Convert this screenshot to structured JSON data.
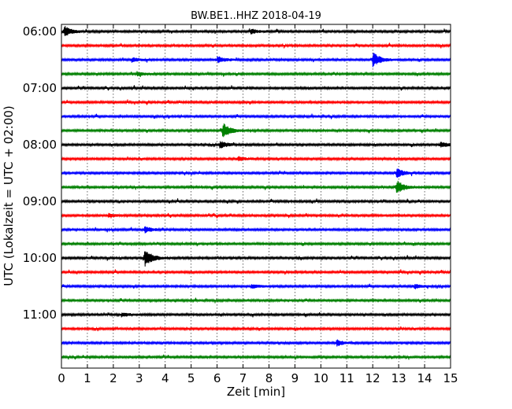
{
  "chart_data": {
    "type": "line",
    "title": "BW.BE1..HHZ 2018-04-19",
    "xlabel": "Zeit  [min]",
    "ylabel": "UTC (Lokalzeit = UTC + 02:00)",
    "xlim": [
      0,
      15
    ],
    "x_ticks": [
      "0",
      "1",
      "2",
      "3",
      "4",
      "5",
      "6",
      "7",
      "8",
      "9",
      "10",
      "11",
      "12",
      "13",
      "14",
      "15"
    ],
    "y_ticks": [
      "06:00",
      "07:00",
      "08:00",
      "09:00",
      "10:00",
      "11:00"
    ],
    "grid": "vertical dotted",
    "start_time": "06:00",
    "line_interval_min": 15,
    "line_count": 24,
    "colors": [
      "#000000",
      "#ff0000",
      "#0000ff",
      "#008000"
    ],
    "events": [
      {
        "line": 0,
        "minute": 0.1,
        "amplitude": 0.9
      },
      {
        "line": 0,
        "minute": 7.3,
        "amplitude": 0.4
      },
      {
        "line": 2,
        "minute": 2.7,
        "amplitude": 0.35
      },
      {
        "line": 2,
        "minute": 6.0,
        "amplitude": 0.55
      },
      {
        "line": 2,
        "minute": 12.0,
        "amplitude": 1.2
      },
      {
        "line": 3,
        "minute": 2.9,
        "amplitude": 0.3
      },
      {
        "line": 7,
        "minute": 6.2,
        "amplitude": 1.3
      },
      {
        "line": 8,
        "minute": 6.1,
        "amplitude": 0.6
      },
      {
        "line": 8,
        "minute": 14.6,
        "amplitude": 0.45
      },
      {
        "line": 9,
        "minute": 6.8,
        "amplitude": 0.35
      },
      {
        "line": 10,
        "minute": 12.9,
        "amplitude": 0.8
      },
      {
        "line": 11,
        "minute": 12.9,
        "amplitude": 1.2
      },
      {
        "line": 13,
        "minute": 1.8,
        "amplitude": 0.3
      },
      {
        "line": 14,
        "minute": 3.2,
        "amplitude": 0.5
      },
      {
        "line": 16,
        "minute": 3.2,
        "amplitude": 1.5
      },
      {
        "line": 18,
        "minute": 7.3,
        "amplitude": 0.35
      },
      {
        "line": 18,
        "minute": 13.6,
        "amplitude": 0.4
      },
      {
        "line": 20,
        "minute": 2.3,
        "amplitude": 0.3
      },
      {
        "line": 22,
        "minute": 10.6,
        "amplitude": 0.5
      }
    ]
  }
}
